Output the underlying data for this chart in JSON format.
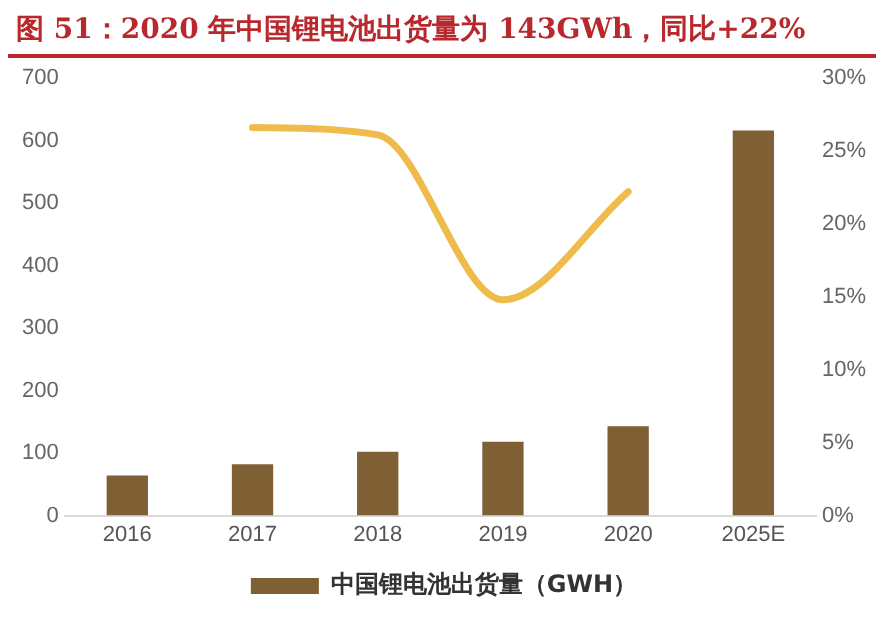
{
  "chart_data": {
    "type": "bar",
    "title": "图 51：2020 年中国锂电池出货量为 143GWh，同比+22%",
    "categories": [
      "2016",
      "2017",
      "2018",
      "2019",
      "2020",
      "2025E"
    ],
    "series": [
      {
        "name": "中国锂电池出货量（GWH）",
        "color": "#7f5f34",
        "values": [
          64,
          82,
          102,
          118,
          143,
          616
        ]
      },
      {
        "type": "line",
        "axis": "y2",
        "color": "#efbb4a",
        "values": [
          null,
          26.6,
          26.1,
          14.8,
          22.2,
          null
        ]
      }
    ],
    "ylim": [
      0,
      700
    ],
    "yticks": [
      0,
      100,
      200,
      300,
      400,
      500,
      600,
      700
    ],
    "y2lim": [
      0,
      30
    ],
    "y2ticks": [
      {
        "value": 0,
        "label": "0%"
      },
      {
        "value": 5,
        "label": "5%"
      },
      {
        "value": 10,
        "label": "10%"
      },
      {
        "value": 15,
        "label": "15%"
      },
      {
        "value": 20,
        "label": "20%"
      },
      {
        "value": 25,
        "label": "25%"
      },
      {
        "value": 30,
        "label": "30%"
      }
    ],
    "grid": false,
    "legend": "bottom",
    "marker": "none"
  }
}
